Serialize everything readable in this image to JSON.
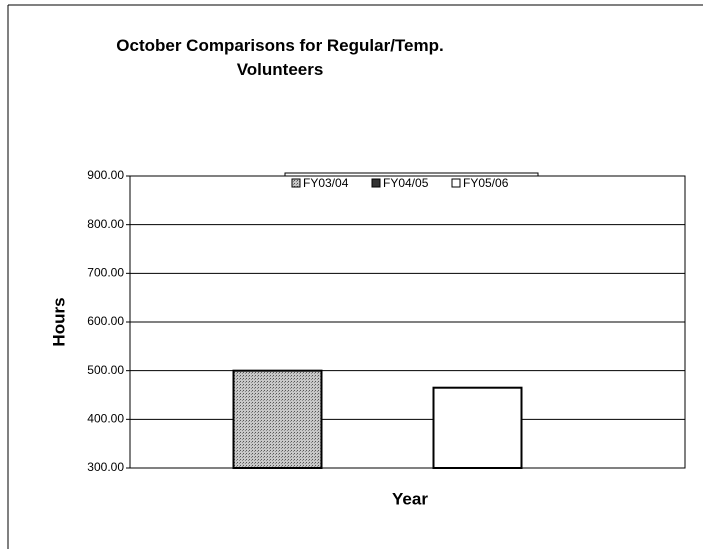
{
  "chart_data": {
    "type": "bar",
    "title": "October Comparisons for Regular/Temp. Volunteers",
    "x_label": "Year",
    "y_label": "Hours",
    "categories": [
      null
    ],
    "series": [
      {
        "name": "FY03/04",
        "color": "#a8a8a8",
        "values": [
          500
        ]
      },
      {
        "name": "FY04/05",
        "color": "#333333",
        "values": [
          null
        ]
      },
      {
        "name": "FY05/06",
        "color": "#ffffff",
        "values": [
          465
        ]
      }
    ],
    "ylim": [
      300,
      900
    ],
    "yticks": [
      {
        "value": 300,
        "label": "300.00"
      },
      {
        "value": 400,
        "label": "400.00"
      },
      {
        "value": 500,
        "label": "500.00"
      },
      {
        "value": 600,
        "label": "600.00"
      },
      {
        "value": 700,
        "label": "700.00"
      },
      {
        "value": 800,
        "label": "800.00"
      },
      {
        "value": 900,
        "label": "900.00"
      }
    ],
    "grid": true,
    "legend": "top"
  }
}
